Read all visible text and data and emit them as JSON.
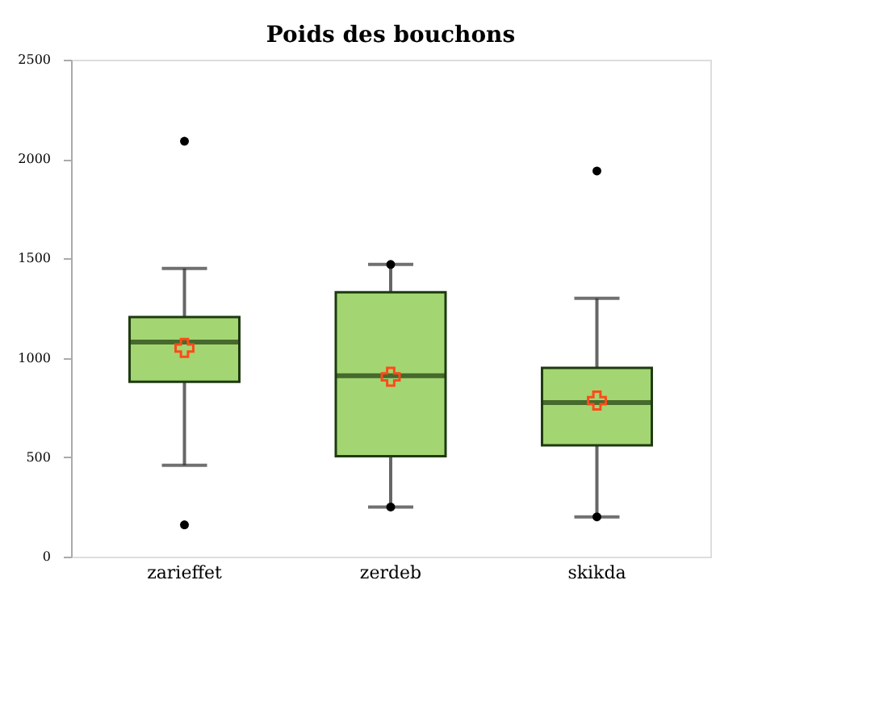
{
  "chart_data": {
    "type": "box",
    "title": "Poids des bouchons",
    "categories": [
      "zarieffet",
      "zerdeb",
      "skikda"
    ],
    "boxes": [
      {
        "low": 460,
        "q1": 880,
        "median": 1080,
        "q3": 1205,
        "high": 1450,
        "mean": 1050,
        "outliers": [
          160,
          2090
        ]
      },
      {
        "low": 250,
        "q1": 505,
        "median": 910,
        "q3": 1330,
        "high": 1470,
        "mean": 905,
        "outliers": [
          250,
          1470
        ]
      },
      {
        "low": 200,
        "q1": 560,
        "median": 775,
        "q3": 950,
        "high": 1300,
        "mean": 785,
        "outliers": [
          200,
          1940
        ]
      }
    ],
    "color": "#a3d672",
    "ylim": [
      0,
      2500
    ],
    "yticks": [
      0,
      500,
      1000,
      1500,
      2000,
      2500
    ],
    "grid": false
  }
}
